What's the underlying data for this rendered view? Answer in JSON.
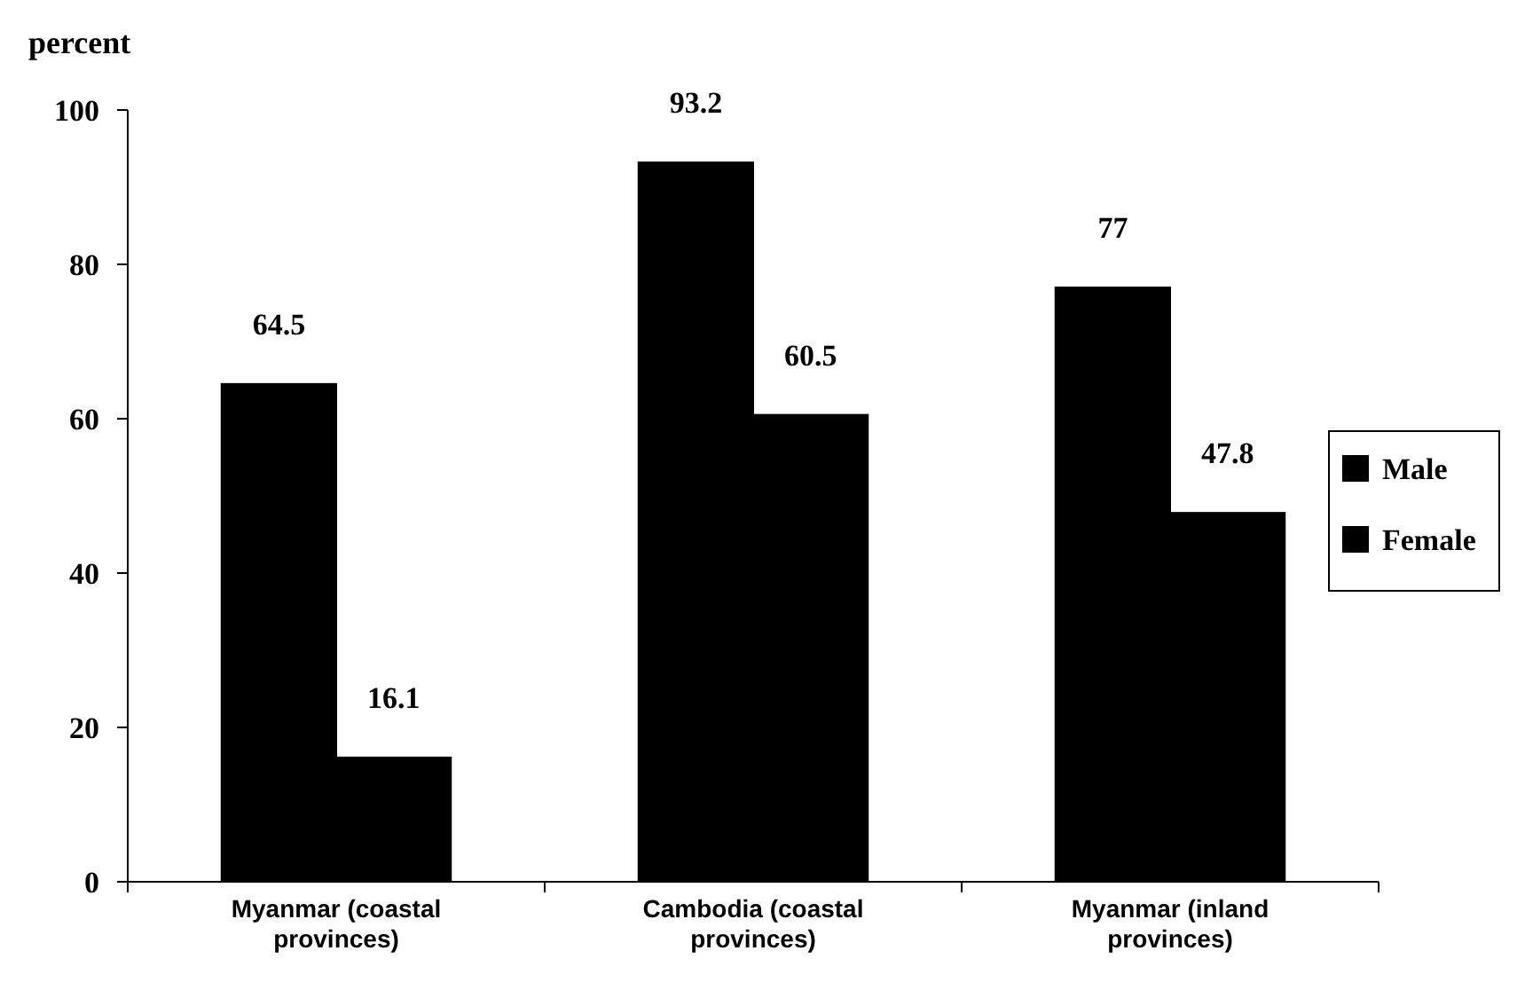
{
  "chart_data": {
    "type": "bar",
    "ylabel": "percent",
    "categories": [
      "Myanmar (coastal provinces)",
      "Cambodia (coastal provinces)",
      "Myanmar (inland provinces)"
    ],
    "series": [
      {
        "name": "Male",
        "color": "#000000",
        "values": [
          64.5,
          93.2,
          77
        ]
      },
      {
        "name": "Female",
        "color": "#000000",
        "values": [
          16.1,
          60.5,
          47.8
        ]
      }
    ],
    "ylim": [
      0,
      100
    ],
    "yticks": [
      0,
      20,
      40,
      60,
      80,
      100
    ],
    "data_labels": true,
    "legend": "right",
    "grid": false
  }
}
